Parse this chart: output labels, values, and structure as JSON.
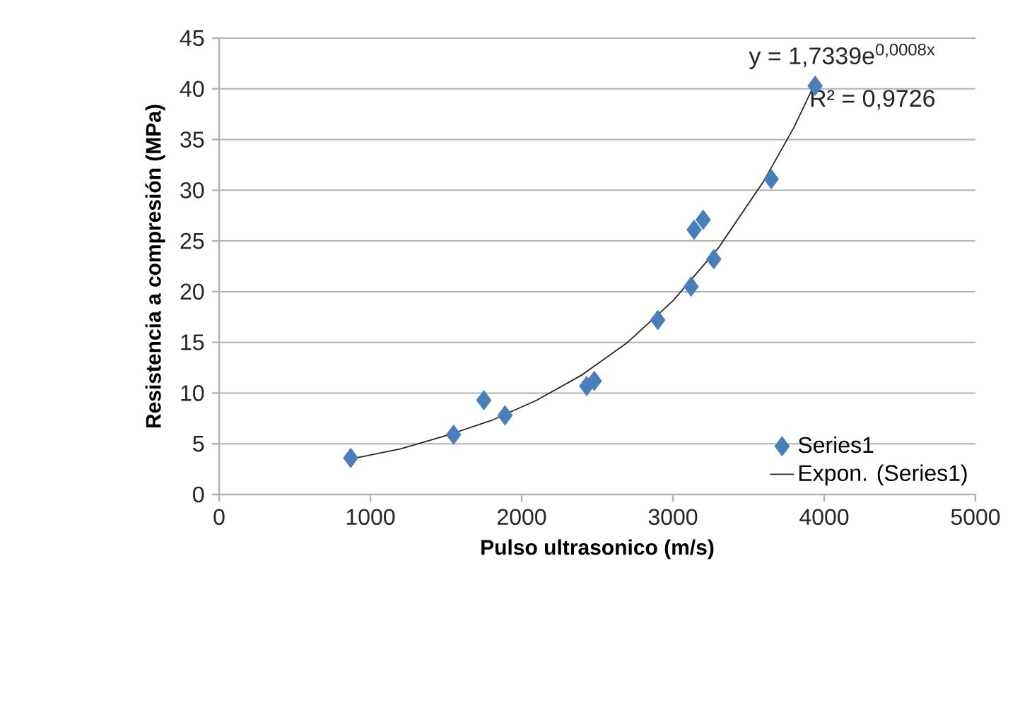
{
  "chart_data": {
    "type": "scatter",
    "xlabel": "Pulso ultrasonico (m/s)",
    "ylabel": "Resistencia a compresión (MPa)",
    "xlim": [
      0,
      5000
    ],
    "xticks": [
      0,
      1000,
      2000,
      3000,
      4000,
      5000
    ],
    "ylim": [
      0,
      45
    ],
    "yticks": [
      0,
      5,
      10,
      15,
      20,
      25,
      30,
      35,
      40,
      45
    ],
    "grid": "y",
    "legend": "bottom right",
    "annotations": [
      "y = 1,7339e$^{0,0008x}$",
      "R² = 0,9726"
    ],
    "series": [
      {
        "name": "Series1",
        "marker": "diamond",
        "color": "#4a7ebb",
        "x": [
          870,
          1550,
          1750,
          1890,
          2430,
          2480,
          2900,
          3120,
          3140,
          3200,
          3270,
          3650,
          3940
        ],
        "values": [
          3.6,
          5.9,
          9.3,
          7.8,
          10.7,
          11.2,
          17.2,
          20.5,
          26.1,
          27.1,
          23.2,
          31.1,
          40.3
        ]
      },
      {
        "name": "Expon. (Series1)",
        "type": "line",
        "marker": "none",
        "color": "#262626",
        "x": [
          870,
          1200,
          1500,
          1800,
          2100,
          2400,
          2700,
          3000,
          3300,
          3600,
          3800,
          3950
        ],
        "values": [
          3.5,
          4.5,
          5.8,
          7.3,
          9.3,
          11.8,
          15.0,
          19.1,
          24.3,
          30.9,
          36.2,
          40.9
        ]
      }
    ]
  }
}
